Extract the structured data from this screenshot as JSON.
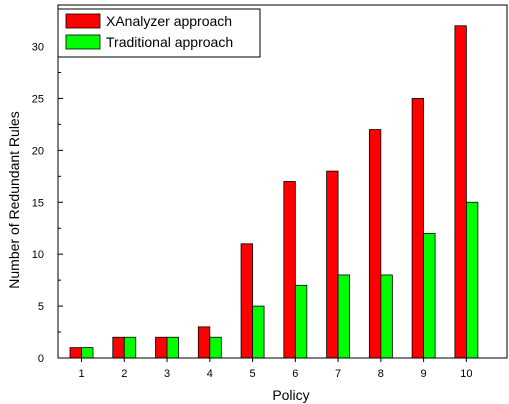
{
  "chart_data": {
    "type": "bar",
    "categories": [
      "1",
      "2",
      "3",
      "4",
      "5",
      "6",
      "7",
      "8",
      "9",
      "10"
    ],
    "series": [
      {
        "name": "XAnalyzer approach",
        "color": "#ff0000",
        "values": [
          1,
          2,
          2,
          3,
          11,
          17,
          18,
          22,
          25,
          32
        ]
      },
      {
        "name": "Traditional approach",
        "color": "#00ff00",
        "values": [
          1,
          2,
          2,
          2,
          5,
          7,
          8,
          8,
          12,
          15
        ]
      }
    ],
    "title": "",
    "xlabel": "Policy",
    "ylabel": "Number of Redundant Rules",
    "ylim": [
      0,
      34
    ],
    "yticks": [
      0,
      5,
      10,
      15,
      20,
      25,
      30
    ],
    "grid": false,
    "legend_position": "top-left"
  }
}
